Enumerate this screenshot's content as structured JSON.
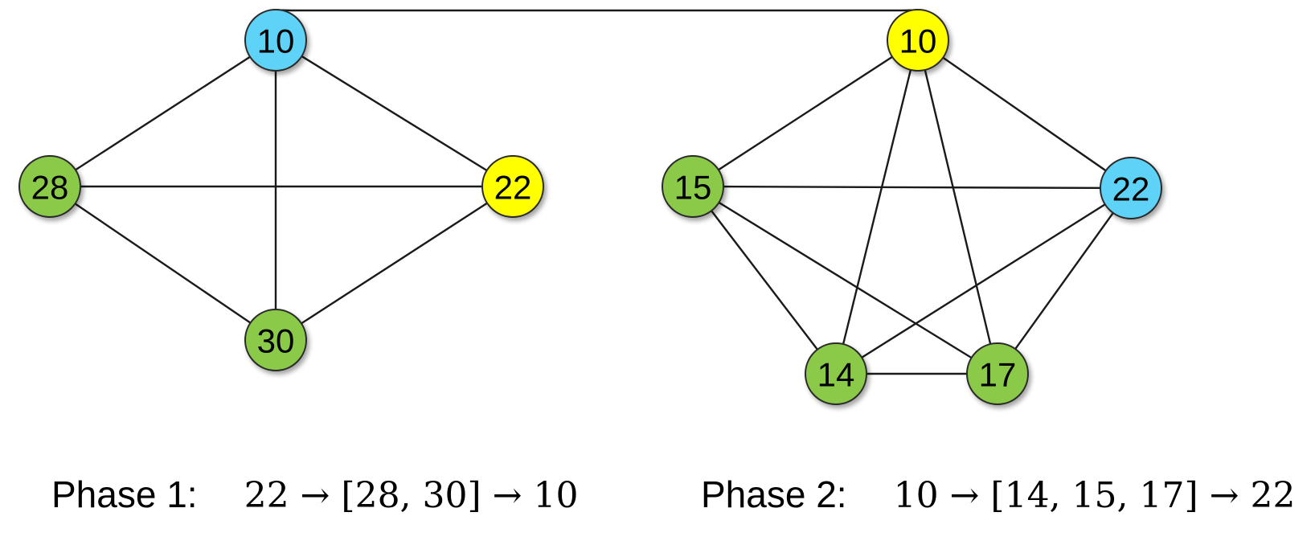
{
  "colors": {
    "source": "#5ed2f7",
    "target": "#ffff00",
    "intermediate": "#8bc94a",
    "edge": "#1a1a1a"
  },
  "phase1": {
    "label": "Phase 1:",
    "sequence": "22 → [28, 30] → 10",
    "nodes": [
      {
        "id": "p1-10",
        "value": "10",
        "role": "source"
      },
      {
        "id": "p1-28",
        "value": "28",
        "role": "intermediate"
      },
      {
        "id": "p1-22",
        "value": "22",
        "role": "target"
      },
      {
        "id": "p1-30",
        "value": "30",
        "role": "intermediate"
      }
    ]
  },
  "phase2": {
    "label": "Phase 2:",
    "sequence": "10 → [14, 15, 17] → 22",
    "nodes": [
      {
        "id": "p2-10",
        "value": "10",
        "role": "target"
      },
      {
        "id": "p2-15",
        "value": "15",
        "role": "intermediate"
      },
      {
        "id": "p2-22",
        "value": "22",
        "role": "source"
      },
      {
        "id": "p2-14",
        "value": "14",
        "role": "intermediate"
      },
      {
        "id": "p2-17",
        "value": "17",
        "role": "intermediate"
      }
    ]
  },
  "edges": [
    [
      "p1-10",
      "p1-28"
    ],
    [
      "p1-10",
      "p1-22"
    ],
    [
      "p1-10",
      "p1-30"
    ],
    [
      "p1-28",
      "p1-22"
    ],
    [
      "p1-28",
      "p1-30"
    ],
    [
      "p1-22",
      "p1-30"
    ],
    [
      "p1-10",
      "p2-10"
    ],
    [
      "p2-10",
      "p2-15"
    ],
    [
      "p2-10",
      "p2-22"
    ],
    [
      "p2-10",
      "p2-14"
    ],
    [
      "p2-10",
      "p2-17"
    ],
    [
      "p2-15",
      "p2-22"
    ],
    [
      "p2-15",
      "p2-14"
    ],
    [
      "p2-15",
      "p2-17"
    ],
    [
      "p2-22",
      "p2-14"
    ],
    [
      "p2-22",
      "p2-17"
    ],
    [
      "p2-14",
      "p2-17"
    ]
  ]
}
